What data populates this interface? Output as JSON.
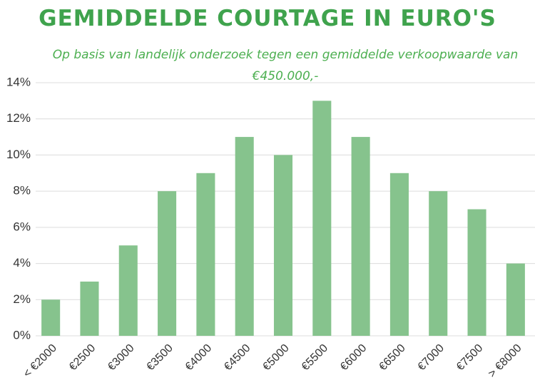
{
  "chart_data": {
    "type": "bar",
    "title": "GEMIDDELDE COURTAGE IN EURO'S",
    "subtitle": "Op basis van landelijk onderzoek tegen een gemiddelde verkoopwaarde van €450.000,-",
    "categories": [
      "< €2000",
      "€2500",
      "€3000",
      "€3500",
      "€4000",
      "€4500",
      "€5000",
      "€5500",
      "€6000",
      "€6500",
      "€7000",
      "€7500",
      "> €8000"
    ],
    "values": [
      2,
      3,
      5,
      8,
      9,
      11,
      10,
      13,
      11,
      9,
      8,
      7,
      4
    ],
    "color": "#86c38d",
    "ylim": [
      0,
      14
    ],
    "yticks": [
      {
        "value": 0,
        "label": "0%"
      },
      {
        "value": 2,
        "label": "2%"
      },
      {
        "value": 4,
        "label": "4%"
      },
      {
        "value": 6,
        "label": "6%"
      },
      {
        "value": 8,
        "label": "8%"
      },
      {
        "value": 10,
        "label": "10%"
      },
      {
        "value": 12,
        "label": "12%"
      },
      {
        "value": 14,
        "label": "14%"
      }
    ],
    "grid": true
  }
}
